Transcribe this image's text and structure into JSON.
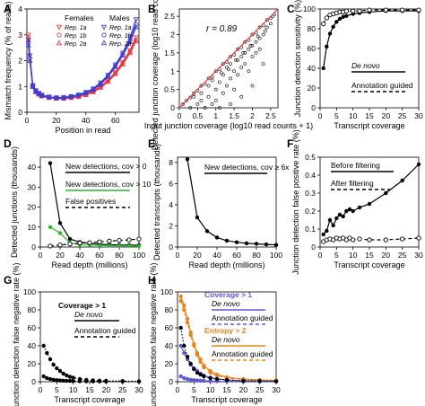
{
  "figure": {
    "panels": [
      "A",
      "B",
      "C",
      "D",
      "E",
      "F",
      "G",
      "H"
    ]
  },
  "chart_data": [
    {
      "id": "A",
      "type": "line",
      "xlabel": "Position in read",
      "ylabel": "Mismatch frequency (% of reads)",
      "xlim": [
        0,
        76
      ],
      "ylim": [
        0,
        4
      ],
      "xticks": [
        0,
        20,
        40,
        60
      ],
      "yticks": [
        0,
        1,
        2,
        3,
        4
      ],
      "legend": {
        "groups": [
          {
            "title": "Females",
            "entries": [
              "Rep. 1a",
              "Rep. 1b",
              "Rep. 2a"
            ]
          },
          {
            "title": "Males",
            "entries": [
              "Rep. 1a",
              "Rep. 1b",
              "Rep. 2a"
            ]
          }
        ]
      },
      "x": [
        1,
        2,
        4,
        6,
        8,
        10,
        15,
        20,
        25,
        30,
        35,
        40,
        45,
        50,
        55,
        60,
        65,
        70,
        74
      ],
      "series": [
        {
          "name": "Rep. 1a",
          "color": "#e8383d",
          "values": [
            3.0,
            2.2,
            1.0,
            0.82,
            0.72,
            0.65,
            0.58,
            0.55,
            0.55,
            0.58,
            0.62,
            0.7,
            0.82,
            1.0,
            1.25,
            1.55,
            1.95,
            2.4,
            2.9
          ]
        },
        {
          "name": "Rep. 1b",
          "color": "#e8383d",
          "values": [
            2.9,
            2.1,
            1.0,
            0.8,
            0.7,
            0.63,
            0.57,
            0.54,
            0.54,
            0.57,
            0.61,
            0.69,
            0.8,
            0.98,
            1.22,
            1.52,
            1.9,
            2.35,
            2.8
          ]
        },
        {
          "name": "Rep. 2a",
          "color": "#e8383d",
          "values": [
            2.8,
            2.0,
            0.98,
            0.78,
            0.69,
            0.62,
            0.56,
            0.53,
            0.53,
            0.56,
            0.6,
            0.67,
            0.78,
            0.95,
            1.18,
            1.48,
            1.85,
            2.3,
            2.75
          ]
        },
        {
          "name": "Rep. 1a",
          "color": "#3b3dd6",
          "values": [
            2.8,
            2.2,
            1.05,
            0.85,
            0.75,
            0.68,
            0.6,
            0.57,
            0.58,
            0.62,
            0.68,
            0.78,
            0.92,
            1.15,
            1.45,
            1.85,
            2.3,
            2.9,
            3.6
          ]
        },
        {
          "name": "Rep. 1b",
          "color": "#3b3dd6",
          "values": [
            2.7,
            2.1,
            1.02,
            0.83,
            0.73,
            0.66,
            0.59,
            0.56,
            0.57,
            0.61,
            0.66,
            0.76,
            0.9,
            1.12,
            1.42,
            1.8,
            2.25,
            2.8,
            3.4
          ]
        },
        {
          "name": "Rep. 2a",
          "color": "#3b3dd6",
          "values": [
            2.6,
            2.0,
            1.0,
            0.8,
            0.71,
            0.64,
            0.58,
            0.55,
            0.56,
            0.6,
            0.65,
            0.74,
            0.87,
            1.08,
            1.38,
            1.75,
            2.2,
            2.72,
            3.3
          ]
        }
      ]
    },
    {
      "id": "B",
      "type": "scatter",
      "xlabel": "Input junction coverage (log10 read counts + 1)",
      "ylabel": "Detected junction coverage (log10 read counts + 1)",
      "xlim": [
        0,
        2.7
      ],
      "ylim": [
        0,
        2.7
      ],
      "xticks": [
        0,
        0.5,
        1.0,
        1.5,
        2.0,
        2.5
      ],
      "yticks": [
        0,
        0.5,
        1.0,
        1.5,
        2.0,
        2.5
      ],
      "annotation": "r = 0.89",
      "diagonal_color": "#e8383d",
      "points": [
        [
          0.1,
          0.1
        ],
        [
          0.2,
          0.2
        ],
        [
          0.3,
          0.28
        ],
        [
          0.4,
          0.4
        ],
        [
          0.5,
          0.47
        ],
        [
          0.6,
          0.6
        ],
        [
          0.7,
          0.65
        ],
        [
          0.8,
          0.8
        ],
        [
          0.9,
          0.85
        ],
        [
          1.0,
          1.0
        ],
        [
          1.1,
          1.05
        ],
        [
          1.2,
          1.2
        ],
        [
          1.3,
          1.25
        ],
        [
          1.4,
          1.4
        ],
        [
          1.5,
          1.45
        ],
        [
          1.6,
          1.6
        ],
        [
          1.7,
          1.65
        ],
        [
          1.8,
          1.8
        ],
        [
          1.9,
          1.85
        ],
        [
          2.0,
          2.0
        ],
        [
          2.1,
          2.05
        ],
        [
          2.2,
          2.2
        ],
        [
          2.3,
          2.25
        ],
        [
          2.4,
          2.4
        ],
        [
          2.5,
          2.45
        ],
        [
          0.3,
          0.0
        ],
        [
          0.5,
          0.1
        ],
        [
          0.6,
          0.2
        ],
        [
          0.7,
          0.0
        ],
        [
          0.8,
          0.3
        ],
        [
          0.9,
          0.1
        ],
        [
          1.0,
          0.5
        ],
        [
          1.0,
          0.2
        ],
        [
          1.1,
          0.7
        ],
        [
          1.2,
          0.4
        ],
        [
          1.2,
          0.9
        ],
        [
          1.3,
          0.6
        ],
        [
          1.3,
          1.1
        ],
        [
          1.4,
          0.8
        ],
        [
          1.4,
          1.2
        ],
        [
          1.5,
          1.0
        ],
        [
          1.5,
          0.5
        ],
        [
          1.6,
          1.3
        ],
        [
          1.6,
          0.9
        ],
        [
          1.7,
          1.4
        ],
        [
          1.7,
          1.1
        ],
        [
          1.8,
          1.5
        ],
        [
          1.8,
          1.2
        ],
        [
          1.9,
          1.6
        ],
        [
          1.9,
          1.0
        ],
        [
          2.0,
          1.7
        ],
        [
          2.0,
          1.4
        ],
        [
          2.1,
          1.8
        ],
        [
          2.1,
          1.5
        ],
        [
          2.2,
          1.9
        ],
        [
          2.2,
          1.6
        ],
        [
          2.3,
          2.0
        ],
        [
          2.4,
          2.2
        ],
        [
          2.5,
          2.3
        ],
        [
          1.1,
          0.0
        ],
        [
          1.4,
          0.1
        ],
        [
          1.7,
          0.3
        ],
        [
          2.0,
          0.6
        ],
        [
          2.3,
          1.2
        ],
        [
          0.8,
          0.6
        ],
        [
          0.6,
          0.4
        ],
        [
          0.4,
          0.3
        ],
        [
          0.9,
          0.75
        ],
        [
          1.15,
          0.95
        ],
        [
          1.35,
          1.05
        ],
        [
          1.55,
          1.3
        ],
        [
          1.75,
          1.5
        ],
        [
          1.95,
          1.7
        ],
        [
          2.15,
          1.95
        ],
        [
          2.35,
          2.1
        ],
        [
          2.55,
          2.5
        ],
        [
          2.6,
          2.55
        ]
      ]
    },
    {
      "id": "C",
      "type": "line",
      "xlabel": "Transcript coverage",
      "ylabel": "Junction detection sensitivity (%)",
      "xlim": [
        0,
        30
      ],
      "ylim": [
        0,
        100
      ],
      "xticks": [
        0,
        5,
        10,
        15,
        20,
        25,
        30
      ],
      "yticks": [
        0,
        20,
        40,
        60,
        80,
        100
      ],
      "x": [
        1,
        2,
        3,
        4,
        5,
        6,
        7,
        8,
        10,
        12,
        15,
        20,
        25,
        30
      ],
      "series": [
        {
          "name": "De novo",
          "style": "solid",
          "values": [
            40,
            62,
            75,
            82,
            87,
            90,
            92,
            93,
            95,
            96,
            97,
            98,
            98,
            98
          ]
        },
        {
          "name": "Annotation guided",
          "style": "dashed",
          "values": [
            85,
            91,
            94,
            95,
            96,
            97,
            97,
            98,
            98,
            98,
            99,
            99,
            99,
            99
          ]
        }
      ]
    },
    {
      "id": "D",
      "type": "line",
      "xlabel": "Read depth (millions)",
      "ylabel": "Detected junctions (thousands)",
      "xlim": [
        0,
        100
      ],
      "ylim": [
        0,
        45
      ],
      "xticks": [
        0,
        20,
        40,
        60,
        80,
        100
      ],
      "yticks": [
        0,
        10,
        20,
        30,
        40
      ],
      "x": [
        10,
        20,
        30,
        40,
        50,
        60,
        70,
        80,
        90,
        100
      ],
      "series": [
        {
          "name": "New detections, cov > 0",
          "color": "#000000",
          "style": "solid",
          "values": [
            42,
            12,
            4,
            2.5,
            1.8,
            1.4,
            1.2,
            1.0,
            1.0,
            0.9
          ]
        },
        {
          "name": "New detections, cov > 10",
          "color": "#2db52d",
          "style": "solid",
          "values": [
            10,
            7,
            2,
            1.2,
            1.0,
            0.8,
            0.7,
            0.6,
            0.6,
            0.5
          ]
        },
        {
          "name": "False positives",
          "color": "#000000",
          "style": "dashed",
          "values": [
            0.5,
            1.0,
            1.5,
            2.0,
            2.2,
            2.6,
            3.0,
            3.3,
            3.6,
            4.0
          ]
        }
      ]
    },
    {
      "id": "E",
      "type": "line",
      "xlabel": "Read depth (millions)",
      "ylabel": "Detected transcripts (thousands)",
      "xlim": [
        0,
        100
      ],
      "ylim": [
        0,
        8.5
      ],
      "xticks": [
        0,
        20,
        40,
        60,
        80,
        100
      ],
      "yticks": [
        0,
        2,
        4,
        6,
        8
      ],
      "x": [
        10,
        20,
        30,
        40,
        50,
        60,
        70,
        80,
        90,
        100
      ],
      "series": [
        {
          "name": "New detections, cov ≥ 6x",
          "values": [
            8.3,
            2.8,
            1.5,
            0.9,
            0.6,
            0.45,
            0.35,
            0.3,
            0.25,
            0.2
          ]
        }
      ]
    },
    {
      "id": "F",
      "type": "line",
      "xlabel": "Transcript coverage",
      "ylabel": "Junction detection false positive rate (%)",
      "xlim": [
        0,
        30
      ],
      "ylim": [
        0,
        0.5
      ],
      "xticks": [
        0,
        5,
        10,
        15,
        20,
        25,
        30
      ],
      "yticks": [
        0,
        0.1,
        0.2,
        0.3,
        0.4,
        0.5
      ],
      "x": [
        1,
        2,
        3,
        4,
        5,
        6,
        7,
        8,
        9,
        10,
        12,
        15,
        20,
        25,
        30
      ],
      "series": [
        {
          "name": "Before filtering",
          "style": "solid",
          "values": [
            0.07,
            0.09,
            0.15,
            0.12,
            0.16,
            0.18,
            0.17,
            0.2,
            0.21,
            0.2,
            0.22,
            0.24,
            0.3,
            0.37,
            0.46
          ]
        },
        {
          "name": "After filtering",
          "style": "dashed",
          "values": [
            0.03,
            0.04,
            0.045,
            0.04,
            0.05,
            0.045,
            0.05,
            0.04,
            0.05,
            0.04,
            0.045,
            0.04,
            0.04,
            0.045,
            0.05
          ]
        }
      ]
    },
    {
      "id": "G",
      "type": "line",
      "xlabel": "Transcript coverage",
      "ylabel": "Junction detection false negative rate (%)",
      "xlim": [
        0,
        30
      ],
      "ylim": [
        0,
        100
      ],
      "xticks": [
        0,
        5,
        10,
        15,
        20,
        25,
        30
      ],
      "yticks": [
        0,
        20,
        40,
        60,
        80,
        100
      ],
      "legend_title": "Coverage > 1",
      "x": [
        1,
        2,
        3,
        4,
        5,
        6,
        7,
        8,
        9,
        10,
        12,
        14,
        16,
        18,
        20,
        25,
        30
      ],
      "series": [
        {
          "name": "De novo",
          "style": "solid",
          "values": [
            40,
            32,
            25,
            19,
            15,
            12,
            9,
            7,
            5.5,
            4.5,
            3,
            2,
            1.5,
            1.2,
            1,
            0.8,
            0.5
          ]
        },
        {
          "name": "Annotation guided",
          "style": "dashed",
          "values": [
            6,
            4,
            3,
            2.2,
            1.8,
            1.4,
            1.2,
            1.0,
            0.9,
            0.8,
            0.6,
            0.5,
            0.4,
            0.4,
            0.3,
            0.3,
            0.2
          ]
        }
      ]
    },
    {
      "id": "H",
      "type": "line",
      "xlabel": "Transcript coverage",
      "ylabel": "Junction detection false negative rate (%)",
      "xlim": [
        0,
        30
      ],
      "ylim": [
        0,
        100
      ],
      "xticks": [
        0,
        5,
        10,
        15,
        20,
        25,
        30
      ],
      "yticks": [
        0,
        20,
        40,
        60,
        80,
        100
      ],
      "legend_groups": [
        {
          "title": "Coverage > 1",
          "color": "#5b5bd6",
          "entries": [
            "De novo",
            "Annotation guided"
          ]
        },
        {
          "title": "Entropy > 2",
          "color": "#e8841e",
          "entries": [
            "De novo",
            "Annotation guided"
          ]
        }
      ],
      "x": [
        1,
        2,
        3,
        4,
        5,
        6,
        7,
        8,
        10,
        12,
        15,
        20,
        25,
        30
      ],
      "series": [
        {
          "name": "Entropy > 2 · De novo",
          "color": "#e8841e",
          "style": "solid",
          "values": [
            95,
            85,
            70,
            55,
            42,
            32,
            25,
            18,
            12,
            8,
            5,
            3,
            2,
            1.5
          ]
        },
        {
          "name": "Entropy > 2 · Annotation guided",
          "color": "#e8841e",
          "style": "dashed",
          "values": [
            90,
            80,
            66,
            52,
            40,
            30,
            22,
            16,
            10,
            7,
            4,
            2.5,
            1.5,
            1.2
          ]
        },
        {
          "name": "Coverage > 1 · De novo",
          "color": "#5b5bd6",
          "style": "solid",
          "values": [
            40,
            32,
            25,
            19,
            15,
            12,
            9,
            7,
            4.5,
            3,
            2,
            1,
            0.8,
            0.5
          ]
        },
        {
          "name": "Coverage > 1 · Annotation guided",
          "color": "#5b5bd6",
          "style": "dashed",
          "values": [
            6,
            4,
            3,
            2.2,
            1.8,
            1.4,
            1.2,
            1,
            0.8,
            0.6,
            0.5,
            0.3,
            0.3,
            0.2
          ]
        },
        {
          "name": "black",
          "color": "#000000",
          "style": "dotted",
          "values": [
            60,
            40,
            28,
            20,
            14,
            10,
            8,
            6,
            4,
            3,
            2,
            1,
            0.8,
            0.5
          ]
        }
      ]
    }
  ]
}
